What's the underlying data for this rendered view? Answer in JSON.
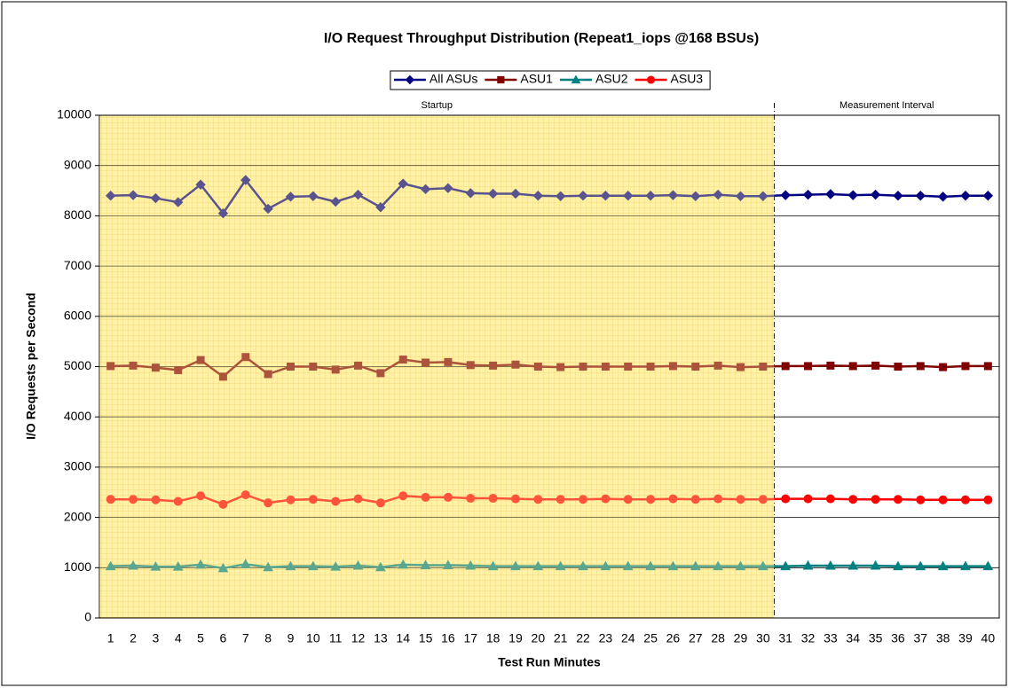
{
  "chart_data": {
    "type": "line",
    "title": "I/O Request Throughput Distribution (Repeat1_iops @168 BSUs)",
    "x_label": "Test Run Minutes",
    "y_label": "I/O Requests per Second",
    "categories": [
      1,
      2,
      3,
      4,
      5,
      6,
      7,
      8,
      9,
      10,
      11,
      12,
      13,
      14,
      15,
      16,
      17,
      18,
      19,
      20,
      21,
      22,
      23,
      24,
      25,
      26,
      27,
      28,
      29,
      30,
      31,
      32,
      33,
      34,
      35,
      36,
      37,
      38,
      39,
      40
    ],
    "ylim": [
      0,
      10000
    ],
    "yticks": [
      0,
      1000,
      2000,
      3000,
      4000,
      5000,
      6000,
      7000,
      8000,
      9000,
      10000
    ],
    "grid": true,
    "legend": "top",
    "regions": [
      {
        "label": "Startup",
        "start": 1,
        "end": 30,
        "color": "#fff2a8"
      },
      {
        "label": "Measurement Interval",
        "start": 31,
        "end": 40,
        "color": "#ffffff"
      }
    ],
    "series": [
      {
        "name": "All ASUs",
        "color": "#000080",
        "marker": "diamond",
        "values": [
          8400,
          8410,
          8350,
          8270,
          8620,
          8050,
          8710,
          8140,
          8380,
          8390,
          8280,
          8420,
          8170,
          8640,
          8530,
          8550,
          8450,
          8440,
          8440,
          8400,
          8390,
          8400,
          8400,
          8400,
          8400,
          8410,
          8390,
          8420,
          8390,
          8390,
          8410,
          8420,
          8430,
          8410,
          8420,
          8400,
          8400,
          8380,
          8400,
          8400
        ]
      },
      {
        "name": "ASU1",
        "color": "#800000",
        "marker": "square",
        "values": [
          5010,
          5020,
          4980,
          4930,
          5130,
          4800,
          5190,
          4850,
          5000,
          5000,
          4940,
          5020,
          4870,
          5140,
          5080,
          5090,
          5030,
          5020,
          5040,
          5000,
          4990,
          5000,
          5000,
          5000,
          5000,
          5010,
          5000,
          5020,
          4990,
          5000,
          5010,
          5010,
          5020,
          5010,
          5020,
          5000,
          5010,
          4990,
          5010,
          5010
        ]
      },
      {
        "name": "ASU2",
        "color": "#008080",
        "marker": "triangle",
        "values": [
          1030,
          1040,
          1020,
          1020,
          1060,
          990,
          1070,
          1010,
          1030,
          1030,
          1020,
          1040,
          1010,
          1060,
          1050,
          1050,
          1040,
          1030,
          1030,
          1030,
          1030,
          1030,
          1030,
          1030,
          1030,
          1030,
          1030,
          1030,
          1030,
          1030,
          1030,
          1040,
          1040,
          1040,
          1040,
          1030,
          1030,
          1030,
          1030,
          1030
        ]
      },
      {
        "name": "ASU3",
        "color": "#ff0000",
        "marker": "circle",
        "values": [
          2360,
          2360,
          2350,
          2320,
          2430,
          2260,
          2450,
          2290,
          2350,
          2360,
          2320,
          2370,
          2290,
          2430,
          2400,
          2400,
          2380,
          2380,
          2370,
          2360,
          2360,
          2360,
          2370,
          2360,
          2360,
          2370,
          2360,
          2370,
          2360,
          2360,
          2370,
          2370,
          2370,
          2360,
          2360,
          2360,
          2350,
          2350,
          2350,
          2350
        ]
      }
    ]
  }
}
